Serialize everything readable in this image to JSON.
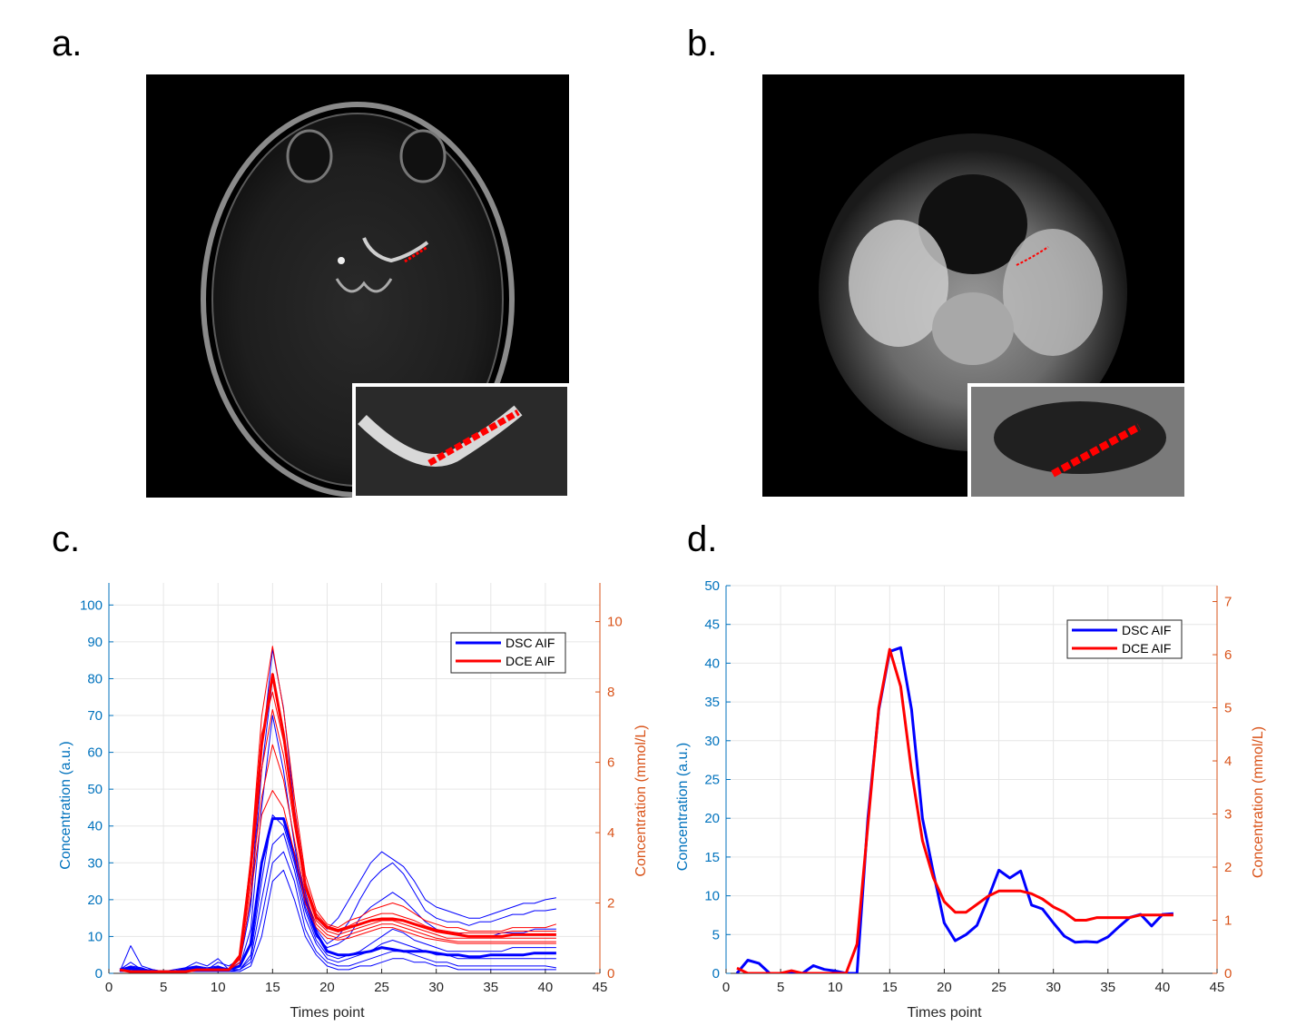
{
  "panels": {
    "a": {
      "label": "a."
    },
    "b": {
      "label": "b."
    },
    "c": {
      "label": "c."
    },
    "d": {
      "label": "d."
    }
  },
  "colors": {
    "dsc": "#0000ff",
    "dce": "#ff0000",
    "left_axis": "#0072bd",
    "right_axis": "#d95319"
  },
  "chart_data": [
    {
      "id": "c",
      "type": "line",
      "title": "",
      "xlabel": "Times point",
      "ylabel_left": "Concentration (a.u.)",
      "ylabel_right": "Concentration (mmol/L)",
      "xlim": [
        0,
        45
      ],
      "xticks": [
        0,
        5,
        10,
        15,
        20,
        25,
        30,
        35,
        40,
        45
      ],
      "ylim_left": [
        0,
        106
      ],
      "yticks_left": [
        0,
        10,
        20,
        30,
        40,
        50,
        60,
        70,
        80,
        90,
        100
      ],
      "ylim_right": [
        0,
        11.1
      ],
      "yticks_right": [
        0,
        2,
        4,
        6,
        8,
        10
      ],
      "grid": true,
      "legend": {
        "position": "top-right",
        "entries": [
          "DSC AIF",
          "DCE AIF"
        ]
      },
      "x": [
        1,
        2,
        3,
        4,
        5,
        6,
        7,
        8,
        9,
        10,
        11,
        12,
        13,
        14,
        15,
        16,
        17,
        18,
        19,
        20,
        21,
        22,
        23,
        24,
        25,
        26,
        27,
        28,
        29,
        30,
        31,
        32,
        33,
        34,
        35,
        36,
        37,
        38,
        39,
        40,
        41
      ],
      "series": [
        {
          "name": "DSC AIF",
          "axis": "left",
          "bold": true,
          "values": [
            1,
            1.5,
            1,
            0.5,
            0.5,
            0.5,
            1,
            1.5,
            1,
            1.5,
            1,
            2,
            8,
            30,
            42,
            42,
            32,
            20,
            11,
            6,
            5,
            5,
            5.5,
            6,
            7,
            6.5,
            6,
            6,
            6,
            5.5,
            5,
            5,
            4.5,
            4.5,
            5,
            5,
            5,
            5,
            5.5,
            5.5,
            5.5
          ]
        },
        {
          "name": "",
          "axis": "left",
          "values": [
            0.5,
            7.5,
            2,
            1,
            0.5,
            0.5,
            1.5,
            2,
            1,
            3,
            2,
            4,
            20,
            60,
            88,
            72,
            45,
            25,
            15,
            12,
            15,
            20,
            25,
            30,
            33,
            31,
            29,
            25,
            20,
            18,
            17,
            16,
            15,
            15,
            16,
            17,
            18,
            19,
            19,
            20,
            20.5
          ]
        },
        {
          "name": "",
          "axis": "left",
          "values": [
            1,
            3,
            1,
            1,
            0.5,
            1,
            1.5,
            3,
            2,
            4,
            1,
            3,
            18,
            55,
            80,
            65,
            42,
            22,
            12,
            8,
            10,
            14,
            20,
            25,
            28,
            30,
            27,
            22,
            17,
            15,
            14,
            14,
            13,
            14,
            14,
            15,
            16,
            16,
            17,
            17,
            17.5
          ]
        },
        {
          "name": "",
          "axis": "left",
          "values": [
            1,
            2,
            1.5,
            0.5,
            0.5,
            0.5,
            1,
            2,
            1.5,
            2,
            1,
            2,
            12,
            45,
            70,
            55,
            35,
            18,
            10,
            7,
            8,
            10,
            15,
            18,
            20,
            22,
            20,
            17,
            14,
            12,
            11,
            11,
            10,
            10,
            10,
            11,
            11,
            11,
            12,
            12,
            12
          ]
        },
        {
          "name": "",
          "axis": "left",
          "values": [
            0.5,
            1,
            1,
            0.5,
            0.5,
            0.5,
            1,
            1.5,
            1,
            1.5,
            1,
            1,
            5,
            25,
            43,
            40,
            30,
            17,
            9,
            5,
            4,
            5,
            6,
            8,
            10,
            12,
            11,
            9,
            8,
            7,
            6,
            6,
            6,
            6,
            6,
            6,
            7,
            7,
            7,
            7,
            7
          ]
        },
        {
          "name": "",
          "axis": "left",
          "values": [
            0.5,
            1,
            0.5,
            0.5,
            0.5,
            0.5,
            0.5,
            1,
            1,
            1,
            1,
            1,
            4,
            20,
            35,
            38,
            28,
            15,
            8,
            4,
            3,
            4,
            5,
            6,
            8,
            9,
            8,
            7,
            6,
            5,
            5,
            4,
            4,
            4,
            4,
            4,
            4,
            4,
            4,
            4,
            4
          ]
        },
        {
          "name": "",
          "axis": "left",
          "values": [
            0.5,
            1,
            0.5,
            0.5,
            0.5,
            0.5,
            0.5,
            1,
            0.5,
            1,
            0.5,
            1,
            3,
            15,
            30,
            33,
            25,
            12,
            6,
            3,
            2,
            2,
            3,
            4,
            5,
            6,
            6,
            5,
            4,
            3,
            3,
            2,
            2,
            2,
            2,
            2,
            2,
            2,
            2,
            2,
            1.5
          ]
        },
        {
          "name": "",
          "axis": "left",
          "values": [
            0.5,
            0.5,
            0.5,
            0.5,
            0.5,
            0.5,
            0.5,
            0.5,
            0.5,
            0.5,
            0.5,
            0.5,
            2,
            10,
            25,
            28,
            20,
            10,
            5,
            2,
            1,
            1,
            2,
            2,
            3,
            4,
            4,
            3,
            3,
            2,
            2,
            1,
            1,
            1,
            1,
            1,
            1,
            1,
            1,
            1,
            1
          ]
        },
        {
          "name": "DCE AIF",
          "axis": "right",
          "bold": true,
          "values": [
            0.1,
            0.05,
            0.05,
            0.05,
            0.05,
            0.05,
            0.05,
            0.1,
            0.1,
            0.1,
            0.1,
            0.5,
            3,
            6.5,
            8.5,
            6.8,
            4.5,
            2.5,
            1.6,
            1.3,
            1.2,
            1.3,
            1.4,
            1.5,
            1.55,
            1.55,
            1.5,
            1.4,
            1.3,
            1.2,
            1.15,
            1.1,
            1.05,
            1.05,
            1.05,
            1.05,
            1.1,
            1.1,
            1.1,
            1.1,
            1.1
          ]
        },
        {
          "name": "",
          "axis": "right",
          "values": [
            0.1,
            0.05,
            0.05,
            0.05,
            0.05,
            0.05,
            0.05,
            0.1,
            0.1,
            0.1,
            0.1,
            0.5,
            3.3,
            7.3,
            9.3,
            7.5,
            5,
            2.8,
            1.8,
            1.4,
            1.3,
            1.5,
            1.6,
            1.8,
            1.9,
            2,
            1.9,
            1.7,
            1.5,
            1.4,
            1.3,
            1.3,
            1.2,
            1.2,
            1.2,
            1.2,
            1.3,
            1.3,
            1.3,
            1.3,
            1.4
          ]
        },
        {
          "name": "",
          "axis": "right",
          "values": [
            0.1,
            0.05,
            0.05,
            0.05,
            0.05,
            0.05,
            0.05,
            0.1,
            0.1,
            0.1,
            0.1,
            0.4,
            2.8,
            5.8,
            7.5,
            6.2,
            4.2,
            2.4,
            1.5,
            1.2,
            1.1,
            1.2,
            1.3,
            1.4,
            1.5,
            1.5,
            1.4,
            1.3,
            1.2,
            1.1,
            1.0,
            1.0,
            1.0,
            1.0,
            1.0,
            1.0,
            1.0,
            1.0,
            1.0,
            1.0,
            1.0
          ]
        },
        {
          "name": "",
          "axis": "right",
          "values": [
            0.1,
            0.05,
            0.05,
            0.05,
            0.05,
            0.05,
            0.05,
            0.1,
            0.1,
            0.1,
            0.1,
            0.4,
            2.5,
            5,
            6.5,
            5.5,
            3.8,
            2.2,
            1.4,
            1.1,
            1.0,
            1.1,
            1.2,
            1.3,
            1.4,
            1.4,
            1.3,
            1.2,
            1.1,
            1.0,
            0.95,
            0.9,
            0.9,
            0.9,
            0.9,
            0.9,
            0.9,
            0.9,
            0.9,
            0.9,
            0.9
          ]
        },
        {
          "name": "",
          "axis": "right",
          "values": [
            0.1,
            0.05,
            0.05,
            0.05,
            0.05,
            0.05,
            0.05,
            0.1,
            0.1,
            0.1,
            0.1,
            0.3,
            2.2,
            4.5,
            5.2,
            4.7,
            3.4,
            2.0,
            1.3,
            1.0,
            0.95,
            1.0,
            1.1,
            1.2,
            1.3,
            1.3,
            1.2,
            1.1,
            1.0,
            0.95,
            0.9,
            0.85,
            0.85,
            0.85,
            0.85,
            0.85,
            0.85,
            0.85,
            0.85,
            0.85,
            0.85
          ]
        },
        {
          "name": "",
          "axis": "right",
          "values": [
            0.1,
            0.05,
            0.05,
            0.05,
            0.05,
            0.05,
            0.05,
            0.1,
            0.1,
            0.1,
            0.1,
            0.5,
            3.1,
            6.8,
            8.0,
            6.6,
            4.6,
            2.6,
            1.7,
            1.35,
            1.25,
            1.35,
            1.5,
            1.6,
            1.7,
            1.7,
            1.6,
            1.5,
            1.35,
            1.25,
            1.2,
            1.15,
            1.15,
            1.15,
            1.15,
            1.15,
            1.2,
            1.2,
            1.2,
            1.2,
            1.2
          ]
        }
      ]
    },
    {
      "id": "d",
      "type": "line",
      "title": "",
      "xlabel": "Times point",
      "ylabel_left": "Concentration (a.u.)",
      "ylabel_right": "Concentration (mmol/L)",
      "xlim": [
        0,
        45
      ],
      "xticks": [
        0,
        5,
        10,
        15,
        20,
        25,
        30,
        35,
        40,
        45
      ],
      "ylim_left": [
        0,
        50
      ],
      "yticks_left": [
        0,
        5,
        10,
        15,
        20,
        25,
        30,
        35,
        40,
        45,
        50
      ],
      "ylim_right": [
        0,
        7.3
      ],
      "yticks_right": [
        0,
        1,
        2,
        3,
        4,
        5,
        6,
        7
      ],
      "grid": true,
      "legend": {
        "position": "top-right",
        "entries": [
          "DSC AIF",
          "DCE AIF"
        ]
      },
      "x": [
        1,
        2,
        3,
        4,
        5,
        6,
        7,
        8,
        9,
        10,
        11,
        12,
        13,
        14,
        15,
        16,
        17,
        18,
        19,
        20,
        21,
        22,
        23,
        24,
        25,
        26,
        27,
        28,
        29,
        30,
        31,
        32,
        33,
        34,
        35,
        36,
        37,
        38,
        39,
        40,
        41
      ],
      "series": [
        {
          "name": "DSC AIF",
          "axis": "left",
          "values": [
            0,
            1.7,
            1.3,
            0,
            0,
            0,
            0,
            1,
            0.5,
            0.3,
            0,
            0,
            20,
            34,
            41.5,
            42,
            34,
            20,
            13,
            6.5,
            4.2,
            5,
            6.2,
            9.6,
            13.3,
            12.3,
            13.2,
            8.8,
            8.3,
            6.5,
            4.8,
            4,
            4.1,
            4,
            4.7,
            6,
            7.2,
            7.6,
            6.1,
            7.6,
            7.7
          ]
        },
        {
          "name": "DCE AIF",
          "axis": "right",
          "values": [
            0.1,
            0.0,
            0.0,
            0.0,
            0.0,
            0.05,
            0.0,
            0.0,
            0.0,
            0.0,
            0.0,
            0.55,
            2.8,
            5.0,
            6.1,
            5.4,
            3.8,
            2.5,
            1.8,
            1.35,
            1.15,
            1.15,
            1.3,
            1.45,
            1.55,
            1.55,
            1.55,
            1.5,
            1.4,
            1.25,
            1.15,
            1.0,
            1.0,
            1.05,
            1.05,
            1.05,
            1.05,
            1.1,
            1.1,
            1.1,
            1.1
          ]
        }
      ]
    }
  ]
}
